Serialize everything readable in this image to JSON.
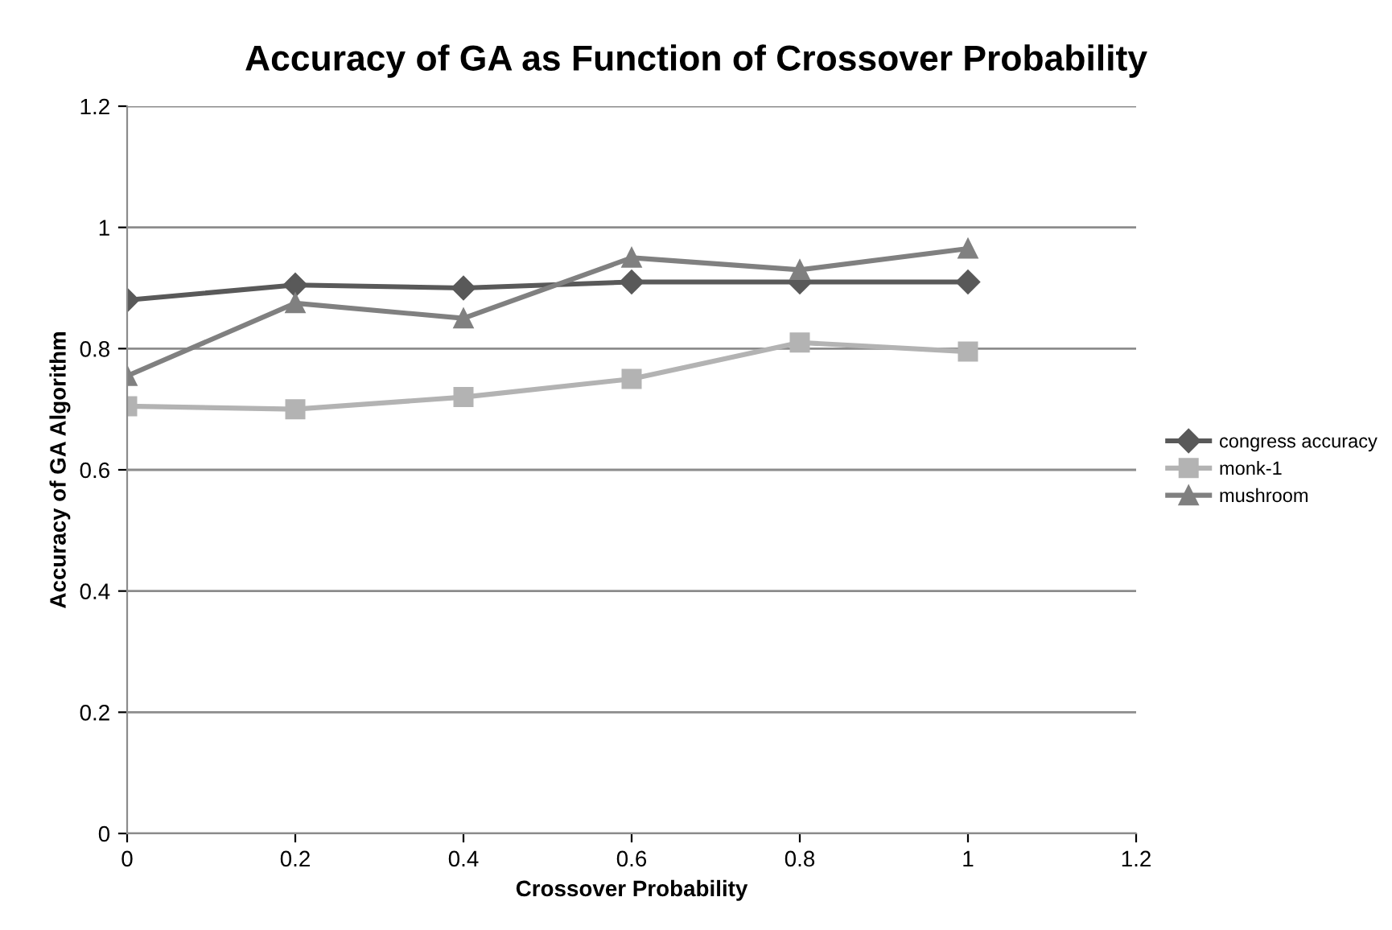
{
  "chart_data": {
    "type": "line",
    "title": "Accuracy of GA as Function of Crossover Probability",
    "xlabel": "Crossover Probability",
    "ylabel": "Accuracy of GA Algorithm",
    "x": [
      0,
      0.2,
      0.4,
      0.6,
      0.8,
      1
    ],
    "series": [
      {
        "name": "congress accuracy",
        "color": "#595959",
        "marker": "diamond",
        "values": [
          0.88,
          0.905,
          0.9,
          0.91,
          0.91,
          0.91
        ]
      },
      {
        "name": "monk-1",
        "color": "#b3b3b3",
        "marker": "square",
        "values": [
          0.705,
          0.7,
          0.72,
          0.75,
          0.81,
          0.795
        ]
      },
      {
        "name": "mushroom",
        "color": "#808080",
        "marker": "triangle",
        "values": [
          0.755,
          0.875,
          0.85,
          0.95,
          0.93,
          0.965
        ]
      }
    ],
    "xlim": [
      0,
      1.2
    ],
    "xticks": [
      0,
      0.2,
      0.4,
      0.6,
      0.8,
      1,
      1.2
    ],
    "ylim": [
      0,
      1.2
    ],
    "yticks": [
      0,
      0.2,
      0.4,
      0.6,
      0.8,
      1,
      1.2
    ],
    "grid": "y",
    "legend": "right",
    "line_style": "solid"
  }
}
